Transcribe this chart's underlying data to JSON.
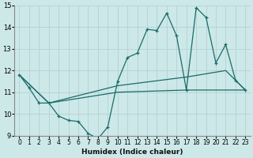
{
  "xlabel": "Humidex (Indice chaleur)",
  "bg_color": "#cde8e8",
  "line_color": "#1a6b6b",
  "grid_color": "#b8d4d4",
  "xlim": [
    -0.5,
    23.5
  ],
  "ylim": [
    9,
    15
  ],
  "xticks": [
    0,
    1,
    2,
    3,
    4,
    5,
    6,
    7,
    8,
    9,
    10,
    11,
    12,
    13,
    14,
    15,
    16,
    17,
    18,
    19,
    20,
    21,
    22,
    23
  ],
  "yticks": [
    9,
    10,
    11,
    12,
    13,
    14,
    15
  ],
  "series_main": [
    [
      0,
      11.8
    ],
    [
      1,
      11.2
    ],
    [
      2,
      10.5
    ],
    [
      3,
      10.5
    ],
    [
      4,
      9.9
    ],
    [
      5,
      9.7
    ],
    [
      6,
      9.65
    ],
    [
      7,
      9.1
    ],
    [
      8,
      8.85
    ],
    [
      9,
      9.4
    ],
    [
      10,
      11.5
    ],
    [
      11,
      12.6
    ],
    [
      12,
      12.8
    ],
    [
      13,
      13.9
    ],
    [
      14,
      13.85
    ],
    [
      15,
      14.65
    ],
    [
      16,
      13.6
    ],
    [
      17,
      11.1
    ],
    [
      18,
      14.9
    ],
    [
      19,
      14.45
    ],
    [
      20,
      12.35
    ],
    [
      21,
      13.2
    ],
    [
      22,
      11.55
    ],
    [
      23,
      11.1
    ]
  ],
  "series_trend1": [
    [
      0,
      11.8
    ],
    [
      3,
      10.5
    ],
    [
      10,
      11.0
    ],
    [
      17,
      11.1
    ],
    [
      23,
      11.1
    ]
  ],
  "series_trend2": [
    [
      0,
      11.8
    ],
    [
      3,
      10.5
    ],
    [
      10,
      11.3
    ],
    [
      17,
      11.7
    ],
    [
      21,
      12.0
    ],
    [
      23,
      11.1
    ]
  ]
}
